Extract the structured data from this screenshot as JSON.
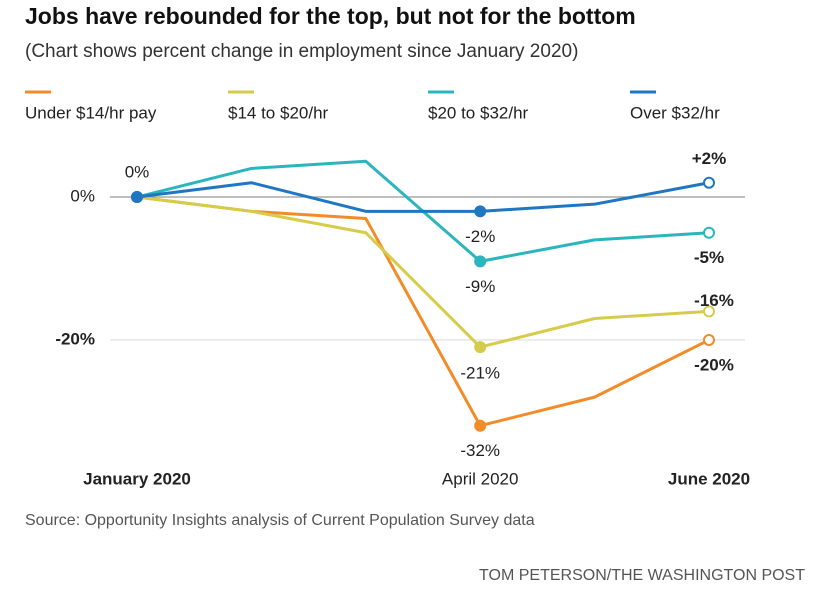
{
  "chart_data": {
    "type": "line",
    "title": "Jobs have rebounded for the top, but not for the bottom",
    "subtitle": "(Chart shows percent change in employment since January 2020)",
    "categories": [
      "January 2020",
      null,
      null,
      "April 2020",
      null,
      "June 2020"
    ],
    "series": [
      {
        "name": "Under $14/hr pay",
        "color": "#f28c28",
        "values": [
          0,
          -2,
          -3,
          -32,
          -28,
          -20
        ],
        "value_labels": [
          null,
          null,
          null,
          "-32%",
          null,
          "-20%"
        ]
      },
      {
        "name": "$14 to $20/hr",
        "color": "#d4cc4a",
        "values": [
          0,
          -2,
          -5,
          -21,
          -17,
          -16
        ],
        "value_labels": [
          null,
          null,
          null,
          "-21%",
          null,
          "-16%"
        ]
      },
      {
        "name": "$20 to $32/hr",
        "color": "#2bb5bd",
        "values": [
          0,
          4,
          5,
          -9,
          -6,
          -5
        ],
        "value_labels": [
          null,
          null,
          null,
          "-9%",
          null,
          "-5%"
        ]
      },
      {
        "name": "Over $32/hr",
        "color": "#1f77c4",
        "values": [
          0,
          2,
          -2,
          -2,
          -1,
          2
        ],
        "value_labels": [
          "0%",
          null,
          null,
          "-2%",
          null,
          "+2%"
        ]
      }
    ],
    "ylim": [
      -34,
      7
    ],
    "yticks": [
      {
        "value": 0,
        "label": "0%"
      },
      {
        "value": -20,
        "label": "-20%"
      }
    ],
    "grid": true,
    "source": "Source: Opportunity Insights analysis of Current Population Survey data",
    "credit": "TOM PETERSON/THE WASHINGTON POST"
  }
}
